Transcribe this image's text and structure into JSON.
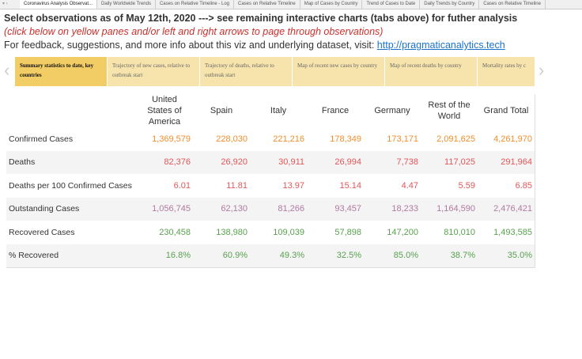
{
  "tabs": [
    "Coronavirus Analysis Observat...",
    "Daily Worldwide Trends",
    "Cases on Relative Timeline - Log",
    "Cases on Relative Timeline",
    "Map of Cases by Country",
    "Trend of Cases to Date",
    "Daily Trends by Country",
    "Cases on Relative Timeline"
  ],
  "header": {
    "title": "Select observations as of May 12th, 2020 ---> see remaining interactive charts (tabs above) for futher analysis",
    "subtitle": "(click below on yellow panes and/or left and right arrows to page through observations)",
    "feedback": "For feedback, suggestions, and more info about this viz and underlying dataset, visit: ",
    "link": "http://pragmaticanalytics.tech"
  },
  "panes": [
    "Summary statistics to date, key countries",
    "Trajectory of new cases, relative to outbreak start",
    "Trajectory of deaths, relative to outbreak start",
    "Map of recent new cases by country",
    "Map of recent deaths by country",
    "Mortality rates by c"
  ],
  "table": {
    "columns": [
      "United States of America",
      "Spain",
      "Italy",
      "France",
      "Germany",
      "Rest of the World",
      "Grand Total"
    ],
    "rows": [
      {
        "label": "Confirmed Cases",
        "values": [
          "1,369,579",
          "228,030",
          "221,216",
          "178,349",
          "173,171",
          "2,091,625",
          "4,261,970"
        ]
      },
      {
        "label": "Deaths",
        "values": [
          "82,376",
          "26,920",
          "30,911",
          "26,994",
          "7,738",
          "117,025",
          "291,964"
        ]
      },
      {
        "label": "Deaths per 100 Confirmed Cases",
        "values": [
          "6.01",
          "11.81",
          "13.97",
          "15.14",
          "4.47",
          "5.59",
          "6.85"
        ]
      },
      {
        "label": "Outstanding Cases",
        "values": [
          "1,056,745",
          "62,130",
          "81,266",
          "93,457",
          "18,233",
          "1,164,590",
          "2,476,421"
        ]
      },
      {
        "label": "Recovered Cases",
        "values": [
          "230,458",
          "138,980",
          "109,039",
          "57,898",
          "147,200",
          "810,010",
          "1,493,585"
        ]
      },
      {
        "label": "% Recovered",
        "values": [
          "16.8%",
          "60.9%",
          "49.3%",
          "32.5%",
          "85.0%",
          "38.7%",
          "35.0%"
        ]
      }
    ]
  }
}
